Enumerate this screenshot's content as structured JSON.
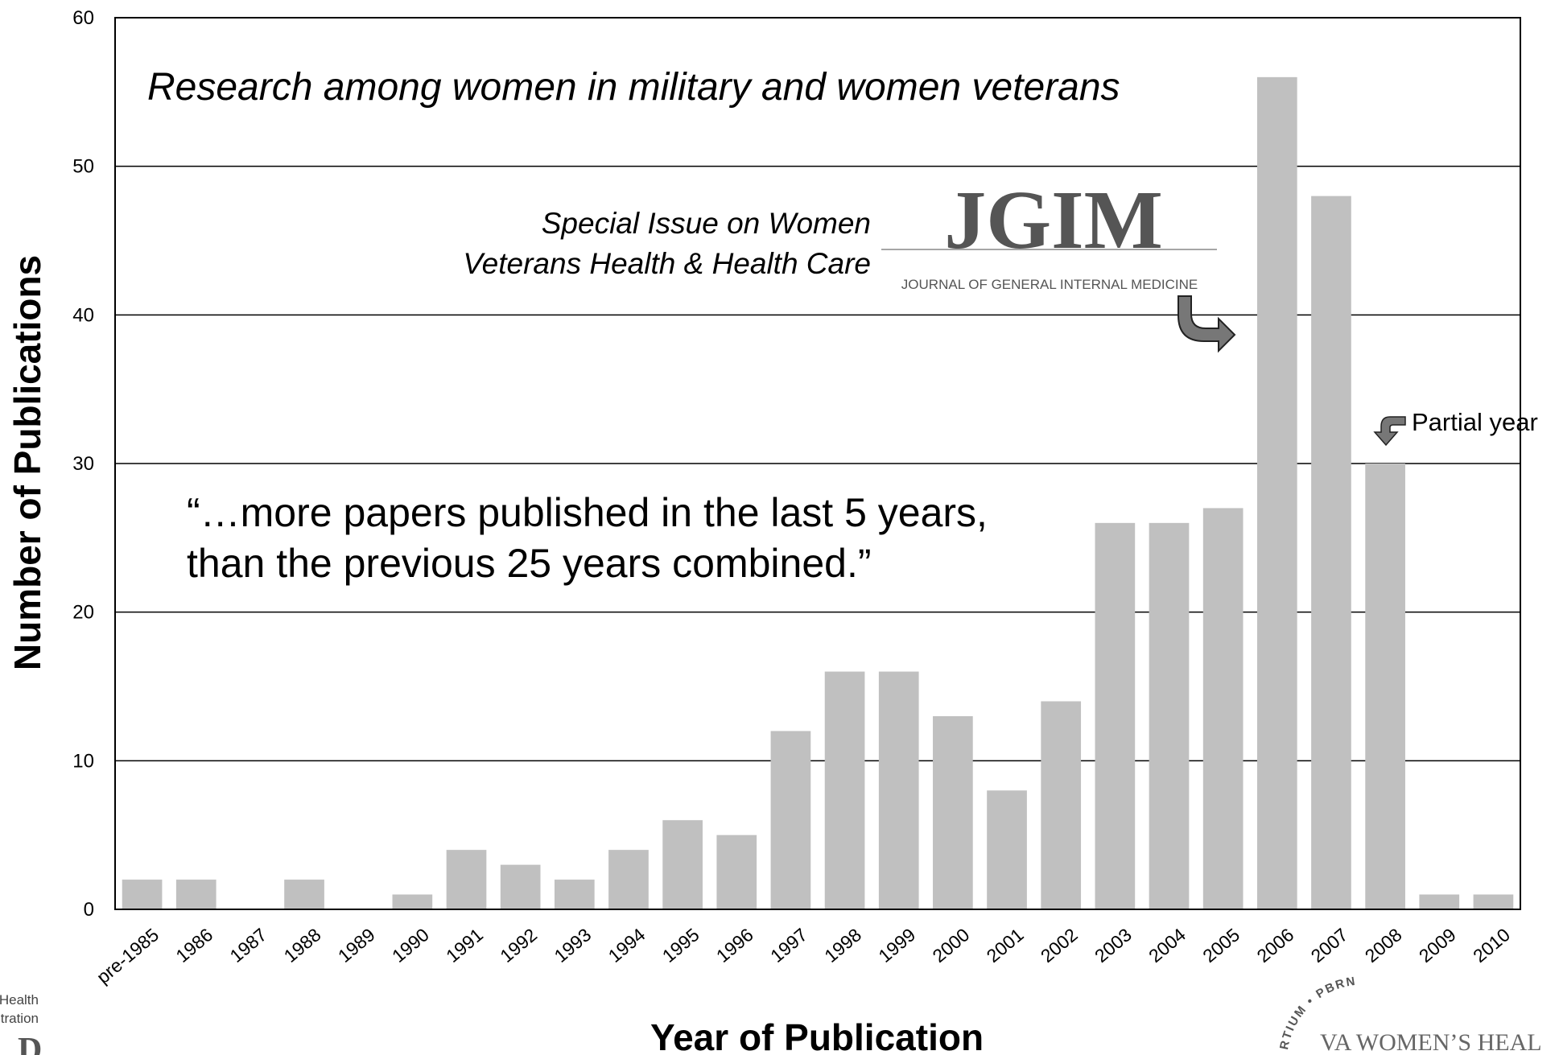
{
  "chart_data": {
    "type": "bar",
    "categories": [
      "pre-1985",
      "1986",
      "1987",
      "1988",
      "1989",
      "1990",
      "1991",
      "1992",
      "1993",
      "1994",
      "1995",
      "1996",
      "1997",
      "1998",
      "1999",
      "2000",
      "2001",
      "2002",
      "2003",
      "2004",
      "2005",
      "2006",
      "2007",
      "2008",
      "2009",
      "2010"
    ],
    "values": [
      2,
      2,
      0,
      2,
      0,
      1,
      4,
      3,
      2,
      4,
      6,
      5,
      12,
      16,
      16,
      13,
      8,
      14,
      26,
      26,
      27,
      56,
      48,
      30,
      1,
      1
    ],
    "xlabel": "Year of Publication",
    "ylabel": "Number of Publications",
    "ylim": [
      0,
      60
    ],
    "yticks": [
      0,
      10,
      20,
      30,
      40,
      50,
      60
    ],
    "grid": true,
    "bar_color": "#c0c0c0",
    "annotations": {
      "heading": "Research among women in military and women veterans",
      "special_issue_line1": "Special Issue on Women",
      "special_issue_line2": "Veterans Health & Health Care",
      "quote_line1": "“…more papers published in the last 5 years,",
      "quote_line2": "than the previous 25 years combined.”",
      "partial_year": "Partial year"
    }
  },
  "logos": {
    "jgim_title": "JGIM",
    "jgim_subtitle": "JOURNAL OF GENERAL INTERNAL MEDICINE",
    "left_logo_line1": "s Health",
    "left_logo_line2": "stration",
    "left_logo_mark": "D",
    "consortium_arc": "RTIUM • PBRN",
    "consortium_name": "VA WOMEN’S HEAL"
  }
}
